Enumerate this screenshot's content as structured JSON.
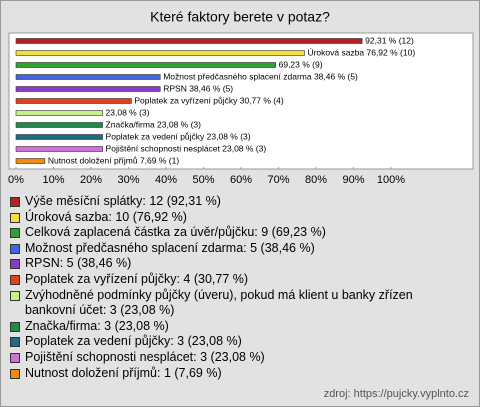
{
  "chart_data": {
    "type": "bar",
    "orientation": "horizontal",
    "title": "Které faktory berete v potaz?",
    "values": [
      92.31,
      76.92,
      69.23,
      38.46,
      38.46,
      30.77,
      23.08,
      23.08,
      23.08,
      23.08,
      7.69
    ],
    "value_labels": [
      "92,31 % (12)",
      "Úroková sazba 76,92 % (10)",
      "69,23 % (9)",
      "Možnost předčasného splacení zdarma 38,46 % (5)",
      "RPSN 38,46 % (5)",
      "Poplatek za vyřízení půjčky 30,77 % (4)",
      "23,08 % (3)",
      "Značka/firma 23,08 % (3)",
      "Poplatek za vedení půjčky 23,08 % (3)",
      "Pojištění schopnosti nesplácet 23,08 % (3)",
      "Nutnost doložení příjmů 7,69 % (1)"
    ],
    "colors": [
      "#b52020",
      "#f2e040",
      "#30a030",
      "#4466dd",
      "#8a3cc8",
      "#e0401a",
      "#c8f08a",
      "#1f8a4a",
      "#1f6e80",
      "#d070d8",
      "#f08a10"
    ],
    "legend": [
      "Výše měsíční splátky: 12 (92,31 %)",
      "Úroková sazba: 10 (76,92 %)",
      "Celková zaplacená částka za úvěr/půjčku: 9 (69,23 %)",
      "Možnost předčasného splacení zdarma: 5 (38,46 %)",
      "RPSN: 5 (38,46 %)",
      "Poplatek za vyřízení půjčky: 4 (30,77 %)",
      "Zvýhodněné podmínky půjčky (úveru), pokud má klient u banky zřízen bankovní účet: 3 (23,08 %)",
      "Značka/firma: 3 (23,08 %)",
      "Poplatek za vedení půjčky: 3 (23,08 %)",
      "Pojištění schopnosti nesplácet: 3 (23,08 %)",
      "Nutnost doložení příjmů: 1 (7,69 %)"
    ],
    "xlim": [
      0,
      100
    ],
    "xticks": [
      {
        "value": 0,
        "label": "0%"
      },
      {
        "value": 10,
        "label": "10%"
      },
      {
        "value": 20,
        "label": "20%"
      },
      {
        "value": 30,
        "label": "30%"
      },
      {
        "value": 40,
        "label": "40%"
      },
      {
        "value": 50,
        "label": "50%"
      },
      {
        "value": 60,
        "label": "60%"
      },
      {
        "value": 70,
        "label": "70%"
      },
      {
        "value": 80,
        "label": "80%"
      },
      {
        "value": 90,
        "label": "90%"
      },
      {
        "value": 100,
        "label": "100%"
      }
    ],
    "source": "zdroj: https://pujcky.vyplnto.cz"
  }
}
